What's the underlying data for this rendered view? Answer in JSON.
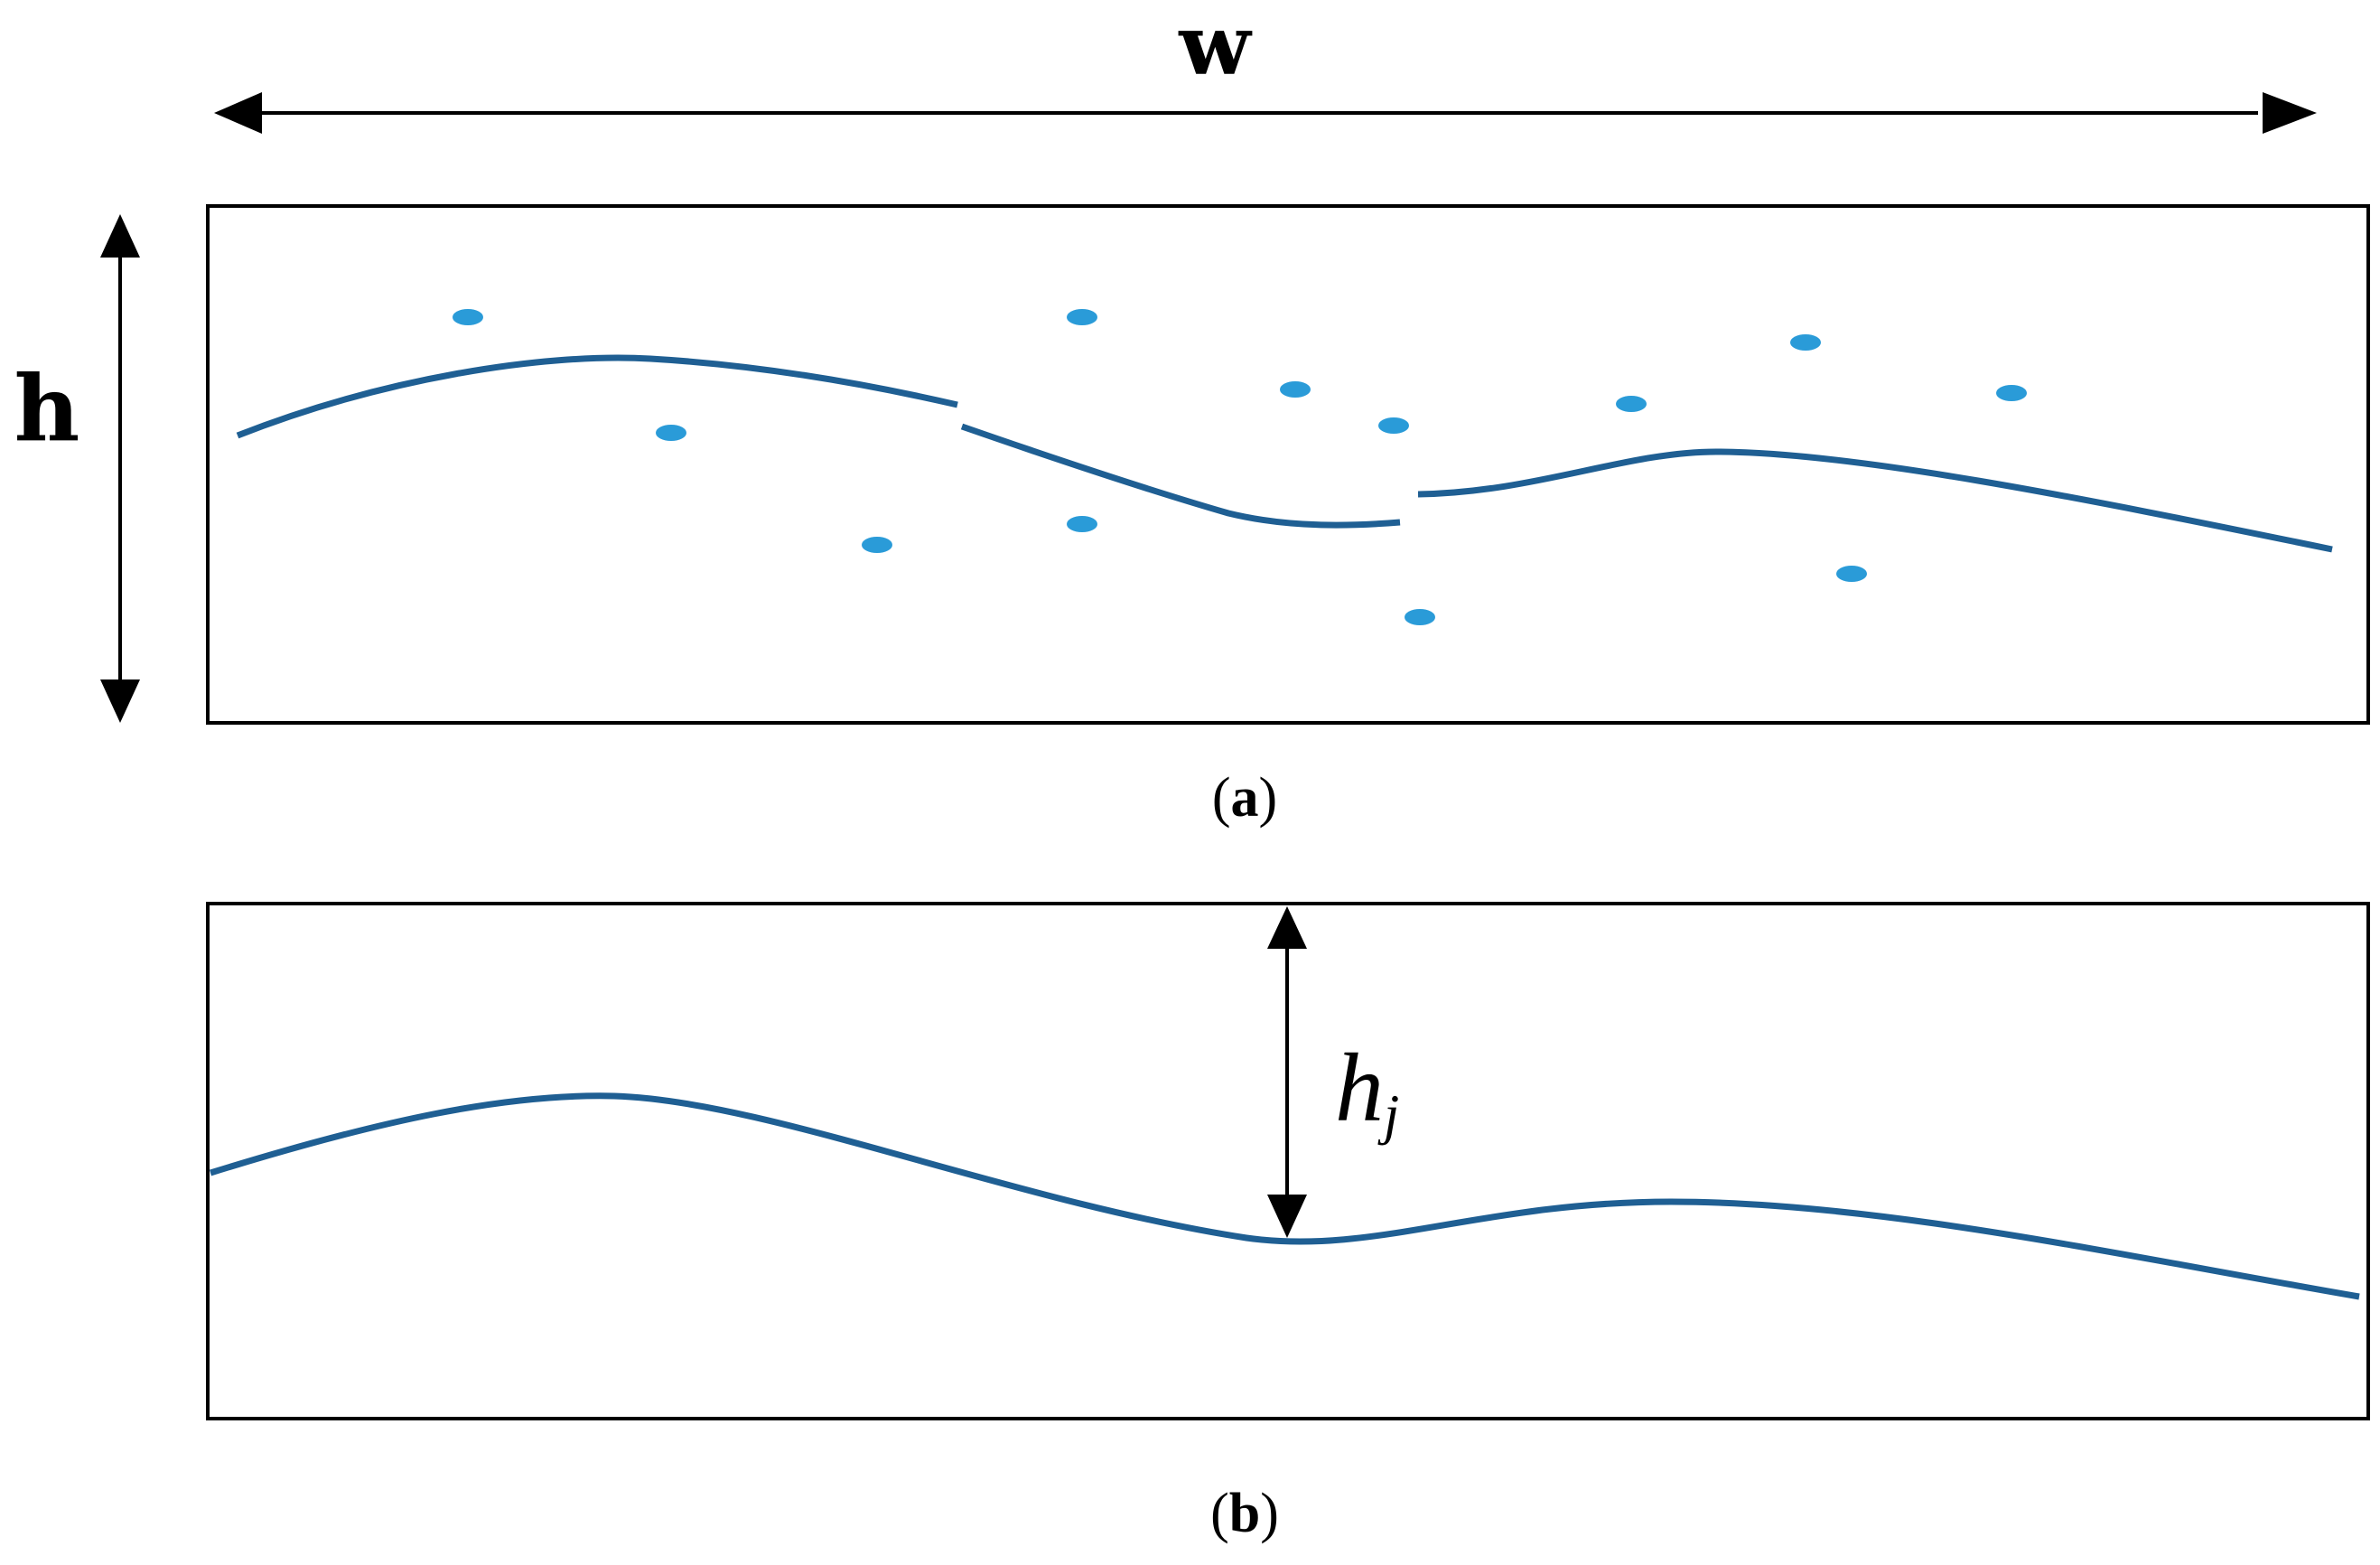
{
  "labels": {
    "width": "w",
    "height": "h",
    "local_height_base": "h",
    "local_height_subscript": "j",
    "caption_a_letter": "a",
    "caption_b_letter": "b"
  },
  "colors": {
    "curve": "#1f5f93",
    "points": "#2a9bd8",
    "frame": "#000000",
    "arrow": "#000000"
  }
}
